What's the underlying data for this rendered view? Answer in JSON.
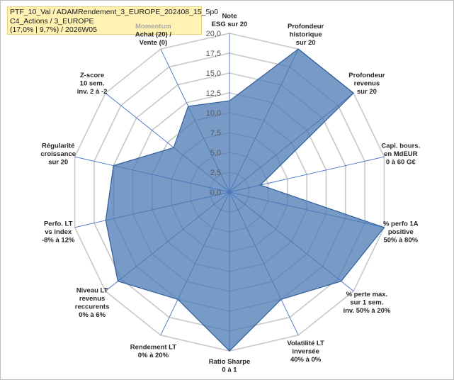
{
  "header": {
    "line1": "PTF_10_Val / ADAMRendement_3_EUROPE_202408_15_5p0",
    "line2": "C4_Actions / 3_EUROPE",
    "line3": "(17,0% | 9,7%) / 2026W05"
  },
  "colors": {
    "fill": "#4a78b4",
    "stroke": "#2f5d9a",
    "grid": "#c8c8c8",
    "spoke": "#4472c4"
  },
  "chart_data": {
    "type": "radar",
    "title": "",
    "rmin": 0,
    "rmax": 20,
    "ticks": [
      0,
      2.5,
      5,
      7.5,
      10,
      12.5,
      15,
      17.5,
      20
    ],
    "tick_labels": [
      "0,0",
      "2,5",
      "5,0",
      "7,5",
      "10,0",
      "12,5",
      "15,0",
      "17,5",
      "20,0"
    ],
    "axes": [
      {
        "label": [
          "Note",
          "ESG sur 20"
        ],
        "value": 11.5
      },
      {
        "label": [
          "Profondeur",
          "historique",
          "sur 20"
        ],
        "value": 20
      },
      {
        "label": [
          "Profondeur",
          "revenus",
          "sur 20"
        ],
        "value": 20
      },
      {
        "label": [
          "Capi. bours.",
          "en MdEUR",
          "0 à 60 G€"
        ],
        "value": 4
      },
      {
        "label": [
          "% perfo 1A",
          "positive",
          "50% à 80%"
        ],
        "value": 20
      },
      {
        "label": [
          "% perte max.",
          "sur 1 sem.",
          "inv. 50% à 20%"
        ],
        "value": 18
      },
      {
        "label": [
          "Volatilité LT",
          "inversée",
          "40% à 0%"
        ],
        "value": 15
      },
      {
        "label": [
          "Ratio Sharpe",
          "0 à 1"
        ],
        "value": 20
      },
      {
        "label": [
          "Rendement LT",
          "0% à 20%"
        ],
        "value": 15
      },
      {
        "label": [
          "Niveau LT",
          "revenus",
          "reccurents",
          "0% à 6%"
        ],
        "value": 18
      },
      {
        "label": [
          "Perfo. LT",
          "vs index",
          "-8% à 12%"
        ],
        "value": 16
      },
      {
        "label": [
          "Régularité",
          "croissance",
          "sur 20"
        ],
        "value": 15
      },
      {
        "label": [
          "Z-score",
          "10 sem.",
          "inv. 2 à -2"
        ],
        "value": 9
      },
      {
        "label": [
          "Momentum",
          "Achat (20) /",
          "Vente (0)"
        ],
        "value": 12,
        "muted_first_line": true
      }
    ]
  }
}
